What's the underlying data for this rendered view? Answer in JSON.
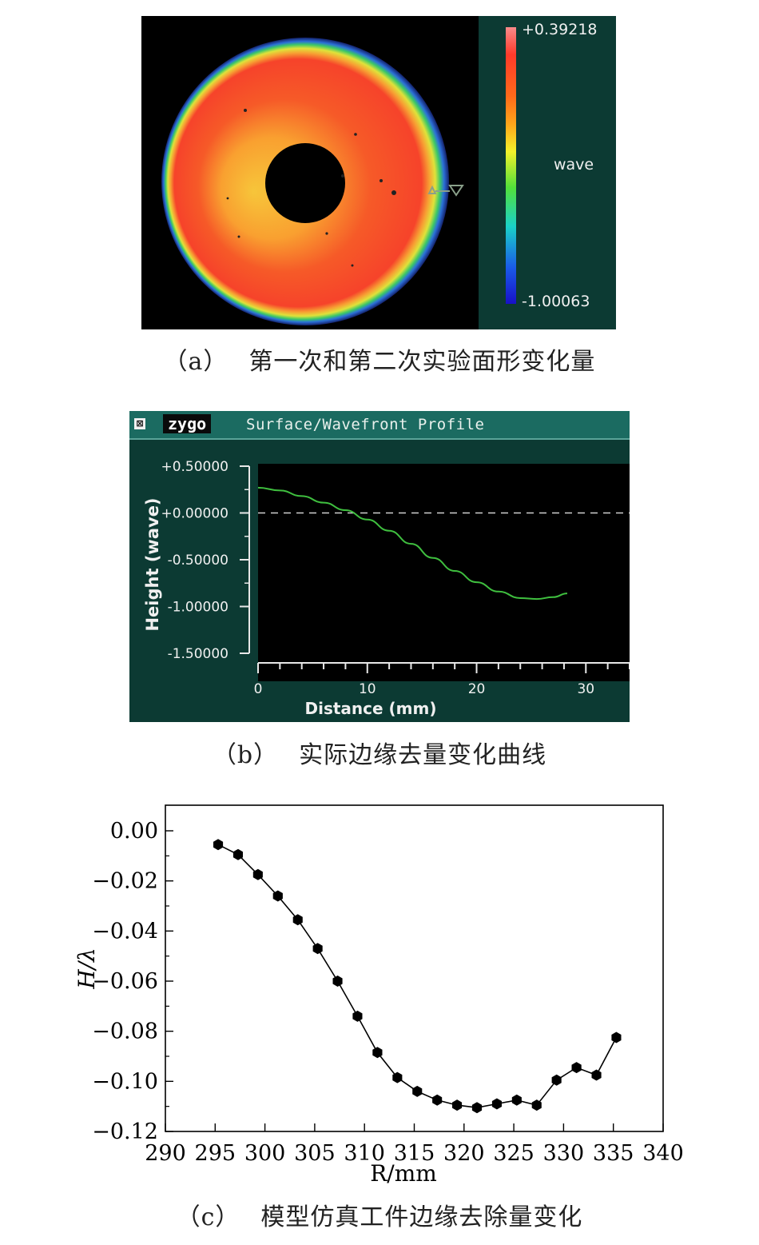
{
  "panel_a": {
    "legend_max": "+0.39218",
    "legend_min": "-1.00063",
    "legend_unit": "wave",
    "caption_num": "（a）",
    "caption_text": "第一次和第二次实验面形变化量"
  },
  "panel_b": {
    "brand": "zygo",
    "window_title": "Surface/Wavefront Profile",
    "caption_num": "（b）",
    "caption_text": "实际边缘去量变化曲线"
  },
  "panel_c": {
    "caption_num": "（c）",
    "caption_text": "模型仿真工件边缘去除量变化"
  },
  "chart_data": [
    {
      "type": "line",
      "title": "Surface/Wavefront Profile",
      "xlabel": "Distance (mm)",
      "ylabel": "Height (wave)",
      "xlim": [
        0,
        34
      ],
      "ylim": [
        -1.5,
        0.5
      ],
      "x_ticks": [
        "0",
        "10",
        "20",
        "30"
      ],
      "y_ticks": [
        "+0.50000",
        "+0.00000",
        "-0.50000",
        "-1.00000",
        "-1.50000"
      ],
      "reference_line_y": 0,
      "series": [
        {
          "color": "#3fbf3f",
          "x": [
            0,
            2,
            4,
            6,
            8,
            10,
            12,
            14,
            16,
            18,
            20,
            22,
            24,
            25.5,
            27,
            28.3
          ],
          "y": [
            0.27,
            0.24,
            0.18,
            0.11,
            0.03,
            -0.07,
            -0.19,
            -0.33,
            -0.48,
            -0.62,
            -0.74,
            -0.84,
            -0.91,
            -0.92,
            -0.9,
            -0.86
          ]
        }
      ]
    },
    {
      "type": "line",
      "xlabel": "R/mm",
      "ylabel": "H/λ",
      "xlim": [
        290,
        340
      ],
      "ylim": [
        -0.12,
        0.005
      ],
      "x_ticks": [
        "290",
        "295",
        "300",
        "305",
        "310",
        "315",
        "320",
        "325",
        "330",
        "335",
        "340"
      ],
      "y_ticks": [
        "0.00",
        "−0.02",
        "−0.04",
        "−0.06",
        "−0.08",
        "−0.10",
        "−0.12"
      ],
      "series": [
        {
          "color": "#000000",
          "x": [
            295.3,
            297.3,
            299.3,
            301.3,
            303.3,
            305.3,
            307.3,
            309.3,
            311.3,
            313.3,
            315.3,
            317.3,
            319.3,
            321.3,
            323.3,
            325.3,
            327.3,
            329.3,
            331.3,
            333.3,
            335.3
          ],
          "y": [
            -0.0055,
            -0.0095,
            -0.0175,
            -0.026,
            -0.0355,
            -0.047,
            -0.06,
            -0.074,
            -0.0885,
            -0.0985,
            -0.104,
            -0.1075,
            -0.1095,
            -0.1105,
            -0.109,
            -0.1075,
            -0.1095,
            -0.0995,
            -0.0945,
            -0.0975,
            -0.0825
          ]
        }
      ]
    }
  ]
}
